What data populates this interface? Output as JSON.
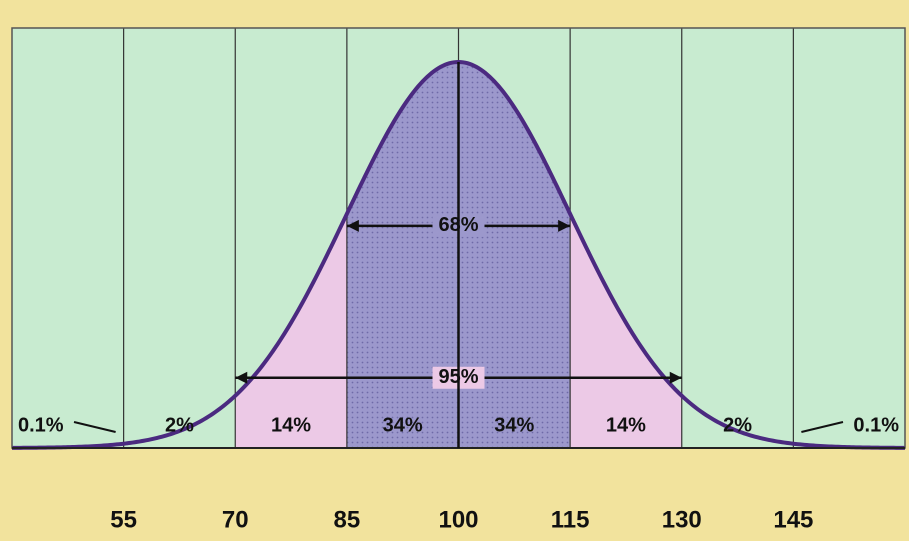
{
  "chart_data": {
    "type": "normal",
    "xlim": [
      40,
      160
    ],
    "xticks": [
      55,
      70,
      85,
      100,
      115,
      130,
      145
    ],
    "values": [
      0.1,
      2,
      14,
      34,
      34,
      14,
      2,
      0.1
    ],
    "value_labels": [
      "0.1%",
      "2%",
      "14%",
      "34%",
      "34%",
      "14%",
      "2%",
      "0.1%"
    ],
    "colors": [
      "#c8ebd0",
      "#c8ebd0",
      "#ecc9e6",
      "#9c98cc",
      "#9c98cc",
      "#ecc9e6",
      "#c8ebd0",
      "#c8ebd0"
    ],
    "brackets": [
      {
        "value": 68,
        "label": "68%"
      },
      {
        "value": 95,
        "label": "95%"
      }
    ],
    "curve_color": "#4b2a80",
    "background": "#c8ebd0"
  }
}
